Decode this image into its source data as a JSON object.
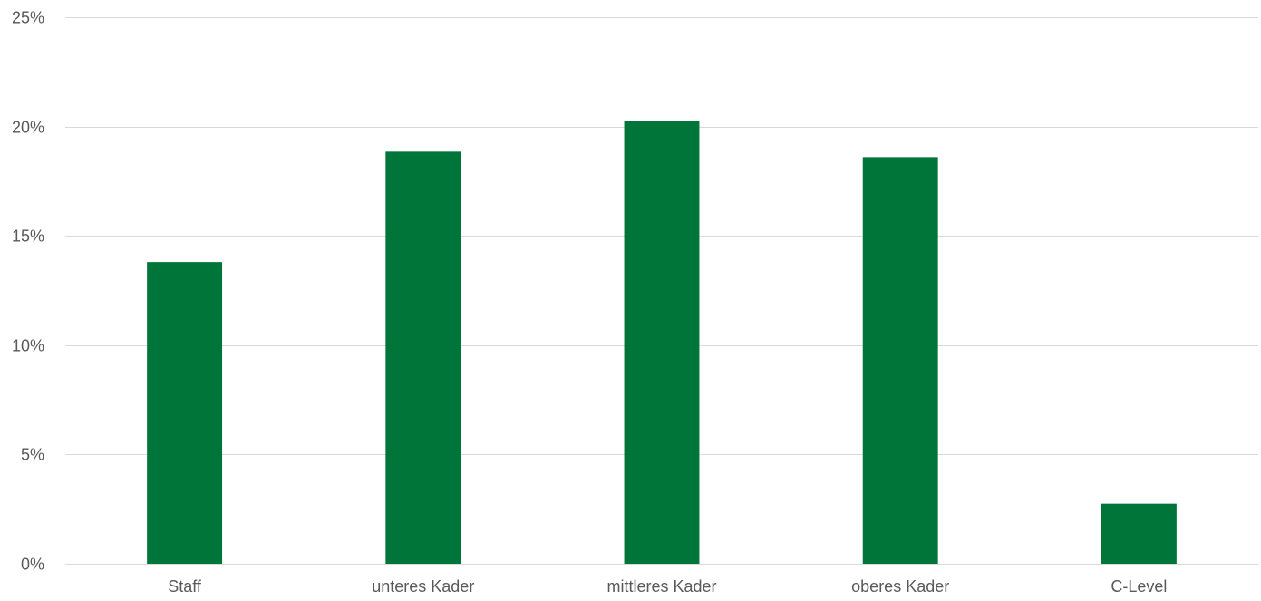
{
  "chart_data": {
    "type": "bar",
    "categories": [
      "Staff",
      "unteres Kader",
      "mittleres Kader",
      "oberes Kader",
      "C-Level"
    ],
    "values": [
      13.8,
      18.85,
      20.25,
      18.6,
      2.75
    ],
    "ylim": [
      0,
      25
    ],
    "yticks": [
      0,
      5,
      10,
      15,
      20,
      25
    ],
    "ytick_labels": [
      "0%",
      "5%",
      "10%",
      "15%",
      "20%",
      "25%"
    ],
    "bar_color": "#00753A",
    "grid": true,
    "legend": "none"
  }
}
